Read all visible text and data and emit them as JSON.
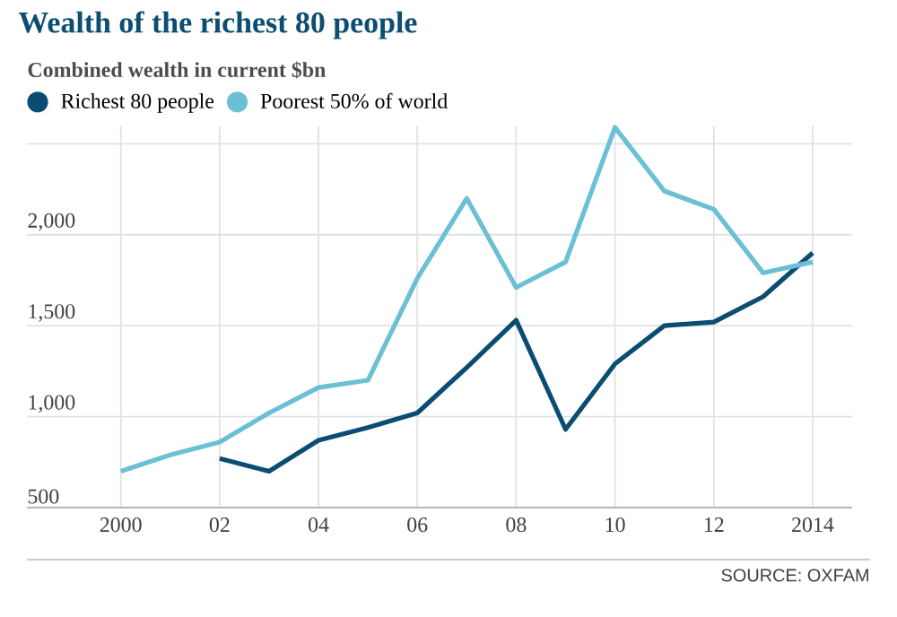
{
  "chart_data": {
    "type": "line",
    "title": "Wealth of the richest 80 people",
    "subtitle": "Combined wealth in current $bn",
    "x": [
      2000,
      2001,
      2002,
      2003,
      2004,
      2005,
      2006,
      2007,
      2008,
      2009,
      2010,
      2011,
      2012,
      2013,
      2014
    ],
    "series": [
      {
        "name": "Richest 80 people",
        "color": "#0b4d72",
        "values": [
          null,
          null,
          770,
          700,
          870,
          940,
          1020,
          1270,
          1530,
          930,
          1290,
          1500,
          1520,
          1660,
          1900
        ]
      },
      {
        "name": "Poorest 50% of world",
        "color": "#6cc0d5",
        "values": [
          700,
          790,
          860,
          1020,
          1160,
          1200,
          1760,
          2200,
          1710,
          1850,
          2590,
          2240,
          2140,
          1790,
          1850
        ]
      }
    ],
    "xlim": [
      1998.1,
      2014.8
    ],
    "ylim": [
      500,
      2600
    ],
    "xticks": [
      2000,
      {
        "value": 2002,
        "label": "02"
      },
      {
        "value": 2004,
        "label": "04"
      },
      {
        "value": 2006,
        "label": "06"
      },
      {
        "value": 2008,
        "label": "08"
      },
      {
        "value": 2010,
        "label": "10"
      },
      {
        "value": 2012,
        "label": "12"
      },
      2014
    ],
    "yticks": [
      500,
      {
        "value": 1000,
        "label": "1,000"
      },
      {
        "value": 1500,
        "label": "1,500"
      },
      {
        "value": 2000,
        "label": "2,000"
      },
      {
        "value": 2500,
        "label": null
      }
    ],
    "grid": true,
    "legend": "top left",
    "line_style": "solid",
    "annotations": [
      "SOURCE: OXFAM"
    ]
  }
}
